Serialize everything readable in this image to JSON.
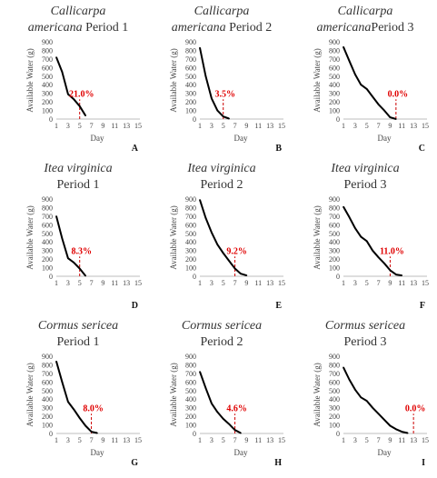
{
  "chart_data": [
    {
      "id": "A",
      "type": "line",
      "title": {
        "line1_species": "Callicarpa",
        "line2_species": "americana",
        "line2_rest": " Period 1"
      },
      "xlabel": "Day",
      "ylabel": "Available Water (g)",
      "xlim": [
        1,
        15
      ],
      "ylim": [
        0,
        900
      ],
      "xticks": [
        1,
        3,
        5,
        7,
        9,
        11,
        13,
        15
      ],
      "yticks": [
        0,
        100,
        200,
        300,
        400,
        500,
        600,
        700,
        800,
        900
      ],
      "x": [
        1,
        2,
        3,
        4,
        5,
        6
      ],
      "y": [
        720,
        550,
        290,
        230,
        150,
        40
      ],
      "threshold_day": 5,
      "annotation": "21.0%",
      "panel_label": "A"
    },
    {
      "id": "B",
      "type": "line",
      "title": {
        "line1_species": "Callicarpa",
        "line2_species": "americana",
        "line2_rest": " Period 2"
      },
      "xlabel": "Day",
      "ylabel": "Available Water (g)",
      "xlim": [
        1,
        15
      ],
      "ylim": [
        0,
        900
      ],
      "xticks": [
        1,
        3,
        5,
        7,
        9,
        11,
        13,
        15
      ],
      "yticks": [
        0,
        100,
        200,
        300,
        400,
        500,
        600,
        700,
        800,
        900
      ],
      "x": [
        1,
        2,
        3,
        4,
        5,
        6
      ],
      "y": [
        830,
        500,
        240,
        100,
        30,
        5
      ],
      "threshold_day": 5,
      "annotation": "3.5%",
      "panel_label": "B"
    },
    {
      "id": "C",
      "type": "line",
      "title": {
        "line1_species": "Callicarpa",
        "line2_species": "americana",
        "line2_rest": "Period 3"
      },
      "xlabel": "Day",
      "ylabel": "Available Water (g)",
      "xlim": [
        1,
        15
      ],
      "ylim": [
        0,
        900
      ],
      "xticks": [
        1,
        3,
        5,
        7,
        9,
        11,
        13,
        15
      ],
      "yticks": [
        0,
        100,
        200,
        300,
        400,
        500,
        600,
        700,
        800,
        900
      ],
      "x": [
        1,
        2,
        3,
        4,
        5,
        6,
        7,
        8,
        9,
        10
      ],
      "y": [
        840,
        680,
        520,
        400,
        350,
        260,
        170,
        100,
        20,
        0
      ],
      "threshold_day": 10,
      "annotation": "0.0%",
      "panel_label": "C"
    },
    {
      "id": "D",
      "type": "line",
      "title": {
        "line1_species": "Itea virginica",
        "line2_rest": "Period 1"
      },
      "xlabel": "",
      "ylabel": "Available Water (g)",
      "xlim": [
        1,
        15
      ],
      "ylim": [
        0,
        900
      ],
      "xticks": [
        1,
        3,
        5,
        7,
        9,
        11,
        13,
        15
      ],
      "yticks": [
        0,
        100,
        200,
        300,
        400,
        500,
        600,
        700,
        800,
        900
      ],
      "x": [
        1,
        2,
        3,
        4,
        5,
        6
      ],
      "y": [
        700,
        440,
        210,
        160,
        90,
        5
      ],
      "threshold_day": 5,
      "annotation": "8.3%",
      "panel_label": "D"
    },
    {
      "id": "E",
      "type": "line",
      "title": {
        "line1_species": "Itea virginica",
        "line2_rest": "Period 2"
      },
      "xlabel": "",
      "ylabel": "Available Water (g)",
      "xlim": [
        1,
        15
      ],
      "ylim": [
        0,
        900
      ],
      "xticks": [
        1,
        3,
        5,
        7,
        9,
        11,
        13,
        15
      ],
      "yticks": [
        0,
        100,
        200,
        300,
        400,
        500,
        600,
        700,
        800,
        900
      ],
      "x": [
        1,
        2,
        3,
        4,
        5,
        6,
        7,
        8,
        9
      ],
      "y": [
        890,
        680,
        510,
        370,
        270,
        180,
        90,
        30,
        10
      ],
      "threshold_day": 7,
      "annotation": "9.2%",
      "panel_label": "E"
    },
    {
      "id": "F",
      "type": "line",
      "title": {
        "line1_species": "Itea virginica",
        "line2_rest": "Period 3"
      },
      "xlabel": "",
      "ylabel": "Available Water (g)",
      "xlim": [
        1,
        15
      ],
      "ylim": [
        0,
        900
      ],
      "xticks": [
        1,
        3,
        5,
        7,
        9,
        11,
        13,
        15
      ],
      "yticks": [
        0,
        100,
        200,
        300,
        400,
        500,
        600,
        700,
        800,
        900
      ],
      "x": [
        1,
        2,
        3,
        4,
        5,
        6,
        7,
        8,
        9,
        10,
        11
      ],
      "y": [
        810,
        690,
        560,
        460,
        410,
        300,
        220,
        150,
        70,
        20,
        10
      ],
      "threshold_day": 9,
      "annotation": "11.0%",
      "panel_label": "F"
    },
    {
      "id": "G",
      "type": "line",
      "title": {
        "line1_species": "Cormus sericea",
        "line2_rest": "Period 1"
      },
      "xlabel": "Day",
      "ylabel": "Available Water (g)",
      "xlim": [
        1,
        15
      ],
      "ylim": [
        0,
        900
      ],
      "xticks": [
        1,
        3,
        5,
        7,
        9,
        11,
        13,
        15
      ],
      "yticks": [
        0,
        100,
        200,
        300,
        400,
        500,
        600,
        700,
        800,
        900
      ],
      "x": [
        1,
        2,
        3,
        4,
        5,
        6,
        7,
        8
      ],
      "y": [
        840,
        600,
        370,
        280,
        180,
        90,
        20,
        5
      ],
      "threshold_day": 7,
      "annotation": "8.0%",
      "panel_label": "G"
    },
    {
      "id": "H",
      "type": "line",
      "title": {
        "line1_species": "Cormus sericea",
        "line2_rest": "Period 2"
      },
      "xlabel": "Day",
      "ylabel": "Available Water (g)",
      "xlim": [
        1,
        15
      ],
      "ylim": [
        0,
        900
      ],
      "xticks": [
        1,
        3,
        5,
        7,
        9,
        11,
        13,
        15
      ],
      "yticks": [
        0,
        100,
        200,
        300,
        400,
        500,
        600,
        700,
        800,
        900
      ],
      "x": [
        1,
        2,
        3,
        4,
        5,
        6,
        7,
        8
      ],
      "y": [
        720,
        530,
        350,
        250,
        170,
        110,
        40,
        5
      ],
      "threshold_day": 7,
      "annotation": "4.6%",
      "panel_label": "H"
    },
    {
      "id": "I",
      "type": "line",
      "title": {
        "line1_species": "Cormus sericea",
        "line2_rest": "Period 3"
      },
      "xlabel": "Day",
      "ylabel": "Available Water (g)",
      "xlim": [
        1,
        15
      ],
      "ylim": [
        0,
        900
      ],
      "xticks": [
        1,
        3,
        5,
        7,
        9,
        11,
        13,
        15
      ],
      "yticks": [
        0,
        100,
        200,
        300,
        400,
        500,
        600,
        700,
        800,
        900
      ],
      "x": [
        1,
        2,
        3,
        4,
        5,
        6,
        7,
        8,
        9,
        10,
        11,
        12
      ],
      "y": [
        770,
        630,
        510,
        420,
        380,
        300,
        230,
        160,
        90,
        50,
        20,
        5
      ],
      "threshold_day": 13,
      "annotation": "0.0%",
      "panel_label": "I"
    }
  ],
  "colors": {
    "line": "#000000",
    "threshold": "#cc0000",
    "annotation": "#e00000",
    "axis": "#bdbdbd"
  }
}
